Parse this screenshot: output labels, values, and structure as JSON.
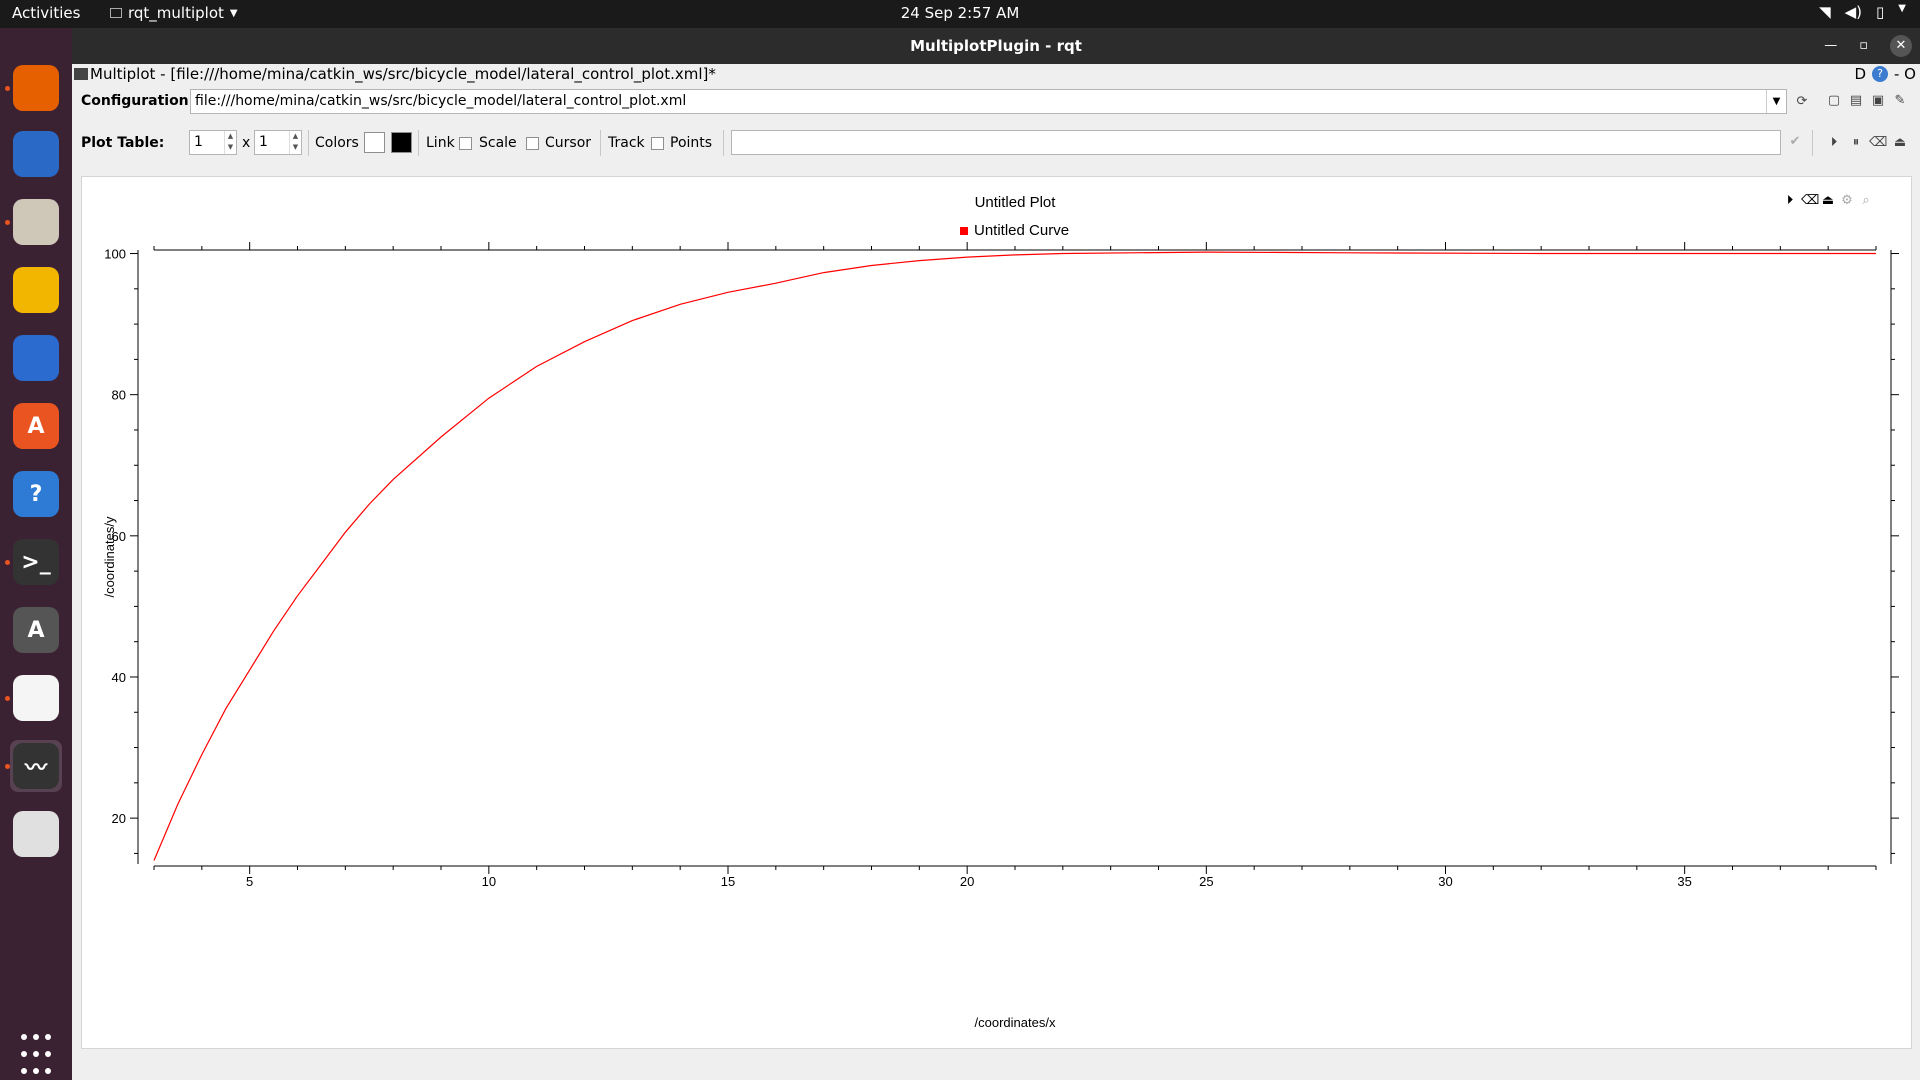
{
  "topbar": {
    "activities": "Activities",
    "app_name": "rqt_multiplot",
    "clock": "24 Sep  2:57 AM"
  },
  "dock": [
    {
      "name": "firefox-icon",
      "color": "#e66000",
      "glyph": "",
      "top": 34,
      "running": true
    },
    {
      "name": "thunderbird-icon",
      "color": "#2a6ac6",
      "glyph": "",
      "top": 100,
      "running": false
    },
    {
      "name": "files-icon",
      "color": "#cfc7b8",
      "glyph": "",
      "top": 168,
      "running": true
    },
    {
      "name": "rhythmbox-icon",
      "color": "#f3b600",
      "glyph": "",
      "top": 236,
      "running": false
    },
    {
      "name": "libreoffice-writer-icon",
      "color": "#2b6bcf",
      "glyph": "",
      "top": 304,
      "running": false
    },
    {
      "name": "software-center-icon",
      "color": "#e95420",
      "glyph": "A",
      "top": 372,
      "running": false
    },
    {
      "name": "help-icon",
      "color": "#2e7bd6",
      "glyph": "?",
      "top": 440,
      "running": false
    },
    {
      "name": "terminal-icon",
      "color": "#333333",
      "glyph": ">_",
      "top": 508,
      "running": true
    },
    {
      "name": "software-updater-icon",
      "color": "#555555",
      "glyph": "A",
      "top": 576,
      "running": false
    },
    {
      "name": "text-editor-icon",
      "color": "#f5f5f5",
      "glyph": "",
      "top": 644,
      "running": true
    },
    {
      "name": "rqt-plot-icon",
      "color": "#333333",
      "glyph": "",
      "top": 712,
      "running": true,
      "active": true
    },
    {
      "name": "ipod-icon",
      "color": "#e0e0e0",
      "glyph": "",
      "top": 780,
      "running": false
    },
    {
      "name": "show-apps-icon",
      "color": "transparent",
      "glyph": "",
      "top": 1000,
      "running": false
    }
  ],
  "window": {
    "title": "MultiplotPlugin - rqt",
    "plugin_title": "Multiplot - [file:///home/mina/catkin_ws/src/bicycle_model/lateral_control_plot.xml]*",
    "dock_right_d": "D",
    "dock_right_close": "- O"
  },
  "config": {
    "label": "Configuration:",
    "value": "file:///home/mina/catkin_ws/src/bicycle_model/lateral_control_plot.xml"
  },
  "plot_table": {
    "label": "Plot Table:",
    "rows": "1",
    "x": "x",
    "cols": "1",
    "colors_label": "Colors",
    "link_label": "Link",
    "scale_label": "Scale",
    "cursor_label": "Cursor",
    "track_label": "Track",
    "points_label": "Points",
    "swatch_colors": [
      "#ffffff",
      "#000000"
    ]
  },
  "chart_data": {
    "type": "line",
    "title": "Untitled Plot",
    "xlabel": "/coordinates/x",
    "ylabel": "/coordinates/y",
    "xlim": [
      3,
      39
    ],
    "ylim": [
      13.5,
      100.5
    ],
    "xticks": [
      5,
      10,
      15,
      20,
      25,
      30,
      35
    ],
    "yticks": [
      20,
      40,
      60,
      80,
      100
    ],
    "series": [
      {
        "name": "Untitled Curve",
        "color": "#ff0000",
        "x": [
          3.0,
          3.5,
          4.0,
          4.5,
          5.0,
          5.5,
          6.0,
          6.5,
          7.0,
          7.5,
          8.0,
          9.0,
          10.0,
          11.0,
          12.0,
          13.0,
          14.0,
          15.0,
          16.0,
          17.0,
          18.0,
          19.0,
          20.0,
          21.0,
          22.0,
          25.0,
          28.0,
          32.0,
          36.0,
          39.0
        ],
        "y": [
          14,
          22,
          29,
          35.5,
          41,
          46.5,
          51.5,
          56,
          60.5,
          64.5,
          68,
          74,
          79.5,
          84,
          87.5,
          90.5,
          92.8,
          94.5,
          95.8,
          97.3,
          98.3,
          99.0,
          99.5,
          99.8,
          100.0,
          100.2,
          100.1,
          100.0,
          100.0,
          100.0
        ]
      }
    ]
  }
}
